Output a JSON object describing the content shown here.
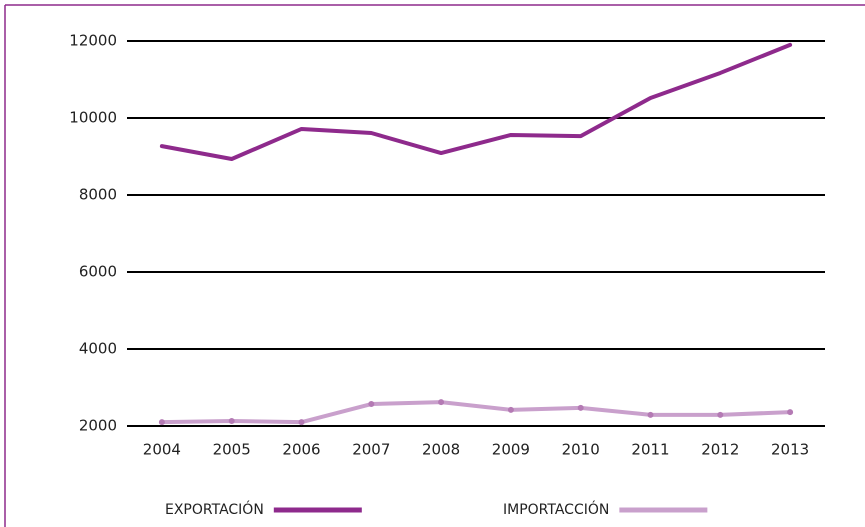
{
  "chart_data": {
    "type": "line",
    "categories": [
      "2004",
      "2005",
      "2006",
      "2007",
      "2008",
      "2009",
      "2010",
      "2011",
      "2012",
      "2013"
    ],
    "series": [
      {
        "name": "EXPORTACIÓN",
        "color": "#8e2a8c",
        "values": [
          9270,
          8935,
          9715,
          9610,
          9090,
          9560,
          9530,
          10520,
          11170,
          11900
        ]
      },
      {
        "name": "IMPORTACCIÓN",
        "color": "#c9a0cc",
        "values": [
          2100,
          2130,
          2100,
          2570,
          2620,
          2420,
          2470,
          2290,
          2290,
          2360
        ]
      }
    ],
    "ylim": [
      2000,
      12000
    ],
    "yticks": [
      2000,
      4000,
      6000,
      8000,
      10000,
      12000
    ],
    "grid": true,
    "legend": "bottom"
  }
}
